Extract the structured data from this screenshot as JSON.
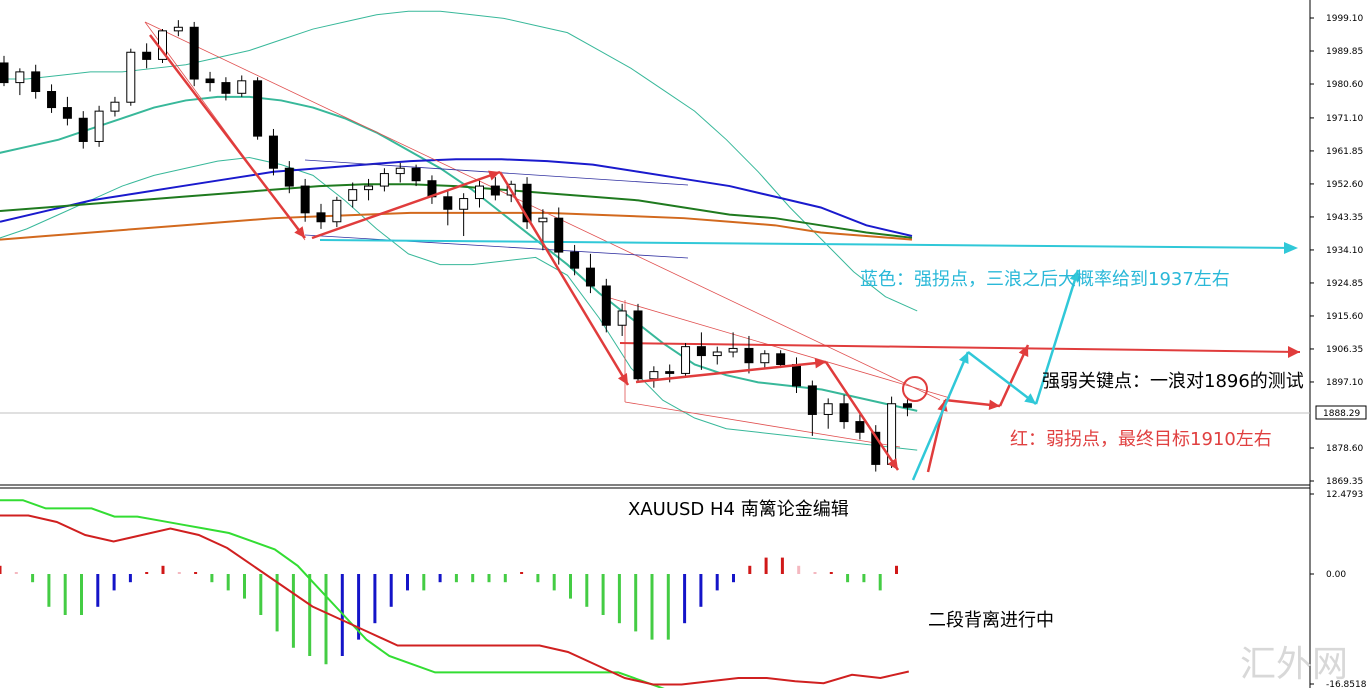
{
  "chart_data": [
    {
      "type": "candlestick",
      "title": "XAUUSD  H4  南篱论金编辑",
      "symbol": "XAUUSD",
      "timeframe": "H4",
      "ylim": [
        1869.35,
        2003
      ],
      "y_ticks": [
        "1999.10",
        "1989.85",
        "1980.60",
        "1971.10",
        "1961.85",
        "1952.60",
        "1943.35",
        "1934.10",
        "1924.85",
        "1915.60",
        "1906.35",
        "1897.10",
        "1878.60",
        "1869.35"
      ],
      "current_price": "1888.29",
      "grid": false,
      "candles": [
        [
          1986.5,
          1988.5,
          1980.0,
          1981.0
        ],
        [
          1981.0,
          1985.0,
          1977.5,
          1984.0
        ],
        [
          1984.0,
          1986.0,
          1976.5,
          1978.5
        ],
        [
          1978.5,
          1980.5,
          1972.5,
          1974.0
        ],
        [
          1974.0,
          1977.0,
          1969.0,
          1971.0
        ],
        [
          1971.0,
          1973.0,
          1962.5,
          1964.5
        ],
        [
          1964.5,
          1974.5,
          1963.0,
          1973.0
        ],
        [
          1973.0,
          1977.0,
          1971.5,
          1975.5
        ],
        [
          1975.5,
          1990.5,
          1974.5,
          1989.5
        ],
        [
          1989.5,
          1992.0,
          1985.0,
          1987.5
        ],
        [
          1987.5,
          1996.0,
          1986.5,
          1995.5
        ],
        [
          1995.5,
          1998.5,
          1994.0,
          1996.5
        ],
        [
          1996.5,
          1998.0,
          1980.0,
          1982.0
        ],
        [
          1982.0,
          1984.0,
          1978.5,
          1981.0
        ],
        [
          1981.0,
          1982.5,
          1976.0,
          1978.0
        ],
        [
          1978.0,
          1983.0,
          1977.0,
          1981.5
        ],
        [
          1981.5,
          1982.5,
          1965.0,
          1966.0
        ],
        [
          1966.0,
          1968.0,
          1955.0,
          1957.0
        ],
        [
          1957.0,
          1959.0,
          1950.0,
          1952.0
        ],
        [
          1952.0,
          1954.0,
          1942.0,
          1944.5
        ],
        [
          1944.5,
          1947.0,
          1940.0,
          1942.0
        ],
        [
          1942.0,
          1949.0,
          1940.5,
          1948.0
        ],
        [
          1948.0,
          1953.0,
          1946.0,
          1951.0
        ],
        [
          1951.0,
          1954.0,
          1948.0,
          1952.0
        ],
        [
          1952.0,
          1957.0,
          1950.5,
          1955.5
        ],
        [
          1955.5,
          1958.5,
          1953.0,
          1957.0
        ],
        [
          1957.0,
          1958.0,
          1952.0,
          1953.5
        ],
        [
          1953.5,
          1955.0,
          1947.0,
          1949.0
        ],
        [
          1949.0,
          1951.0,
          1941.0,
          1945.5
        ],
        [
          1945.5,
          1950.0,
          1938.0,
          1948.5
        ],
        [
          1948.5,
          1953.5,
          1946.0,
          1952.0
        ],
        [
          1952.0,
          1954.5,
          1948.0,
          1949.5
        ],
        [
          1949.5,
          1953.5,
          1947.5,
          1952.5
        ],
        [
          1952.5,
          1954.5,
          1940.0,
          1942.0
        ],
        [
          1942.0,
          1945.5,
          1934.0,
          1943.0
        ],
        [
          1943.0,
          1946.0,
          1930.0,
          1933.5
        ],
        [
          1933.5,
          1935.5,
          1927.0,
          1929.0
        ],
        [
          1929.0,
          1933.0,
          1922.0,
          1924.0
        ],
        [
          1924.0,
          1926.0,
          1911.0,
          1913.0
        ],
        [
          1913.0,
          1919.0,
          1910.0,
          1917.0
        ],
        [
          1917.0,
          1919.0,
          1897.0,
          1898.0
        ],
        [
          1898.0,
          1901.5,
          1895.5,
          1900.0
        ],
        [
          1900.0,
          1902.0,
          1897.0,
          1899.5
        ],
        [
          1899.5,
          1908.0,
          1898.5,
          1907.0
        ],
        [
          1907.0,
          1911.0,
          1900.5,
          1904.5
        ],
        [
          1904.5,
          1907.0,
          1902.0,
          1905.5
        ],
        [
          1905.5,
          1911.0,
          1904.0,
          1906.5
        ],
        [
          1906.5,
          1910.0,
          1899.5,
          1902.5
        ],
        [
          1902.5,
          1906.0,
          1901.0,
          1905.0
        ],
        [
          1905.0,
          1906.0,
          1901.0,
          1902.0
        ],
        [
          1902.0,
          1904.0,
          1894.0,
          1896.0
        ],
        [
          1896.0,
          1897.5,
          1882.0,
          1888.0
        ],
        [
          1888.0,
          1892.5,
          1884.0,
          1891.0
        ],
        [
          1891.0,
          1893.5,
          1884.0,
          1886.0
        ],
        [
          1886.0,
          1888.5,
          1881.0,
          1883.0
        ],
        [
          1883.0,
          1885.0,
          1872.0,
          1874.0
        ],
        [
          1874.0,
          1893.0,
          1873.0,
          1891.0
        ],
        [
          1891.0,
          1892.5,
          1887.5,
          1890.0
        ]
      ],
      "bollinger": {
        "upper": [
          1982,
          1982,
          1983,
          1984,
          1984,
          1985,
          1986,
          1988,
          1990,
          1993,
          1996,
          1998,
          2000,
          2001,
          2001,
          2000,
          1999,
          1997,
          1995,
          1990,
          1985,
          1979,
          1973,
          1965,
          1956,
          1946,
          1937,
          1928,
          1921,
          1917
        ],
        "middle": [
          1961,
          1963,
          1965,
          1968,
          1971,
          1974,
          1976,
          1977,
          1977,
          1976,
          1974,
          1971,
          1967,
          1962,
          1957,
          1951,
          1944,
          1937,
          1930,
          1922,
          1915,
          1908,
          1902,
          1899,
          1897,
          1896,
          1895,
          1893,
          1891,
          1889
        ],
        "lower": [
          1937,
          1940,
          1944,
          1948,
          1952,
          1955,
          1957,
          1959,
          1960,
          1958,
          1955,
          1948,
          1940,
          1933,
          1930,
          1930,
          1931,
          1932,
          1927,
          1915,
          1901,
          1892,
          1887,
          1884,
          1883,
          1882,
          1881,
          1880,
          1879,
          1878
        ]
      },
      "moving_averages": [
        {
          "color": "#1a1acd",
          "values": [
            1942,
            1945,
            1948,
            1950,
            1952,
            1954,
            1956,
            1957,
            1958,
            1959,
            1959.5,
            1959.5,
            1959,
            1958,
            1956,
            1954,
            1952,
            1949,
            1946,
            1941,
            1938
          ]
        },
        {
          "color": "#1f7a1f",
          "values": [
            1945,
            1946,
            1947,
            1948,
            1949,
            1950,
            1951,
            1952,
            1952.5,
            1952.5,
            1952,
            1951,
            1950,
            1949,
            1948,
            1946,
            1944,
            1943,
            1941,
            1939,
            1937.5
          ]
        },
        {
          "color": "#d2691e",
          "values": [
            1937,
            1938,
            1939,
            1940,
            1941,
            1942,
            1943,
            1943.5,
            1944,
            1944.5,
            1944.5,
            1944.5,
            1944.5,
            1944,
            1943.5,
            1943,
            1942,
            1941,
            1939,
            1938,
            1937
          ]
        }
      ],
      "annotations": {
        "blue": "蓝色：强拐点，三浪之后大概率给到1937左右",
        "key": "强弱关键点：一浪对1896的测试",
        "red": "红：弱拐点，最终目标1910左右"
      },
      "levels": {
        "blue_target": 1935,
        "red_target": 1905
      }
    },
    {
      "type": "macd",
      "ylim": [
        -16.8518,
        12.4793
      ],
      "y_ticks": [
        "12.4793",
        "0.00",
        "-16.8518"
      ],
      "histogram": [
        1,
        0,
        -1,
        -4,
        -5,
        -5,
        -4,
        -2,
        -1,
        0,
        1,
        0,
        0,
        -1,
        -2,
        -3,
        -5,
        -7,
        -9,
        -10,
        -11,
        -10,
        -8,
        -6,
        -4,
        -2,
        -2,
        -1,
        -1,
        -1,
        -1,
        -1,
        0,
        -1,
        -2,
        -3,
        -4,
        -5,
        -6,
        -7,
        -8,
        -8,
        -6,
        -4,
        -2,
        -1,
        1,
        2,
        2,
        1,
        0,
        0,
        -1,
        -1,
        -2,
        1
      ],
      "signal_line": [
        9,
        9,
        8,
        8,
        8,
        7,
        7,
        6.5,
        6,
        5.5,
        5,
        4,
        3,
        1,
        -2,
        -5,
        -8,
        -10,
        -11,
        -12,
        -12,
        -12,
        -12,
        -12,
        -12,
        -12,
        -12,
        -12,
        -13,
        -14,
        -15,
        -16,
        -16,
        -16,
        -15.5,
        -15.5,
        -15.5,
        -15.5,
        -15.8,
        -15.5,
        -15
      ],
      "macd_line": [
        9,
        9,
        8,
        6,
        5,
        6,
        7,
        6,
        4,
        1,
        -2,
        -5,
        -7,
        -9,
        -11,
        -11,
        -11,
        -11,
        -11,
        -11,
        -12,
        -14,
        -16,
        -17,
        -17,
        -16.5,
        -16,
        -16,
        -16.5,
        -16.8,
        -15.5,
        -16,
        -15
      ]
    }
  ],
  "texts": {
    "indicator_caption": "二段背离进行中",
    "watermark": "汇外网"
  },
  "colors": {
    "red_arrow": "#e03c3c",
    "cyan_arrow": "#30c8d8",
    "blue_annot": "#2ab8d8",
    "red_annot": "#e04040",
    "bb": "#38b89a",
    "hist_up": "#d01818",
    "hist_up_light": "#f4b8c0",
    "hist_down": "#1414c8",
    "hist_down_light": "#44cc44",
    "macd_red": "#d02020",
    "macd_green": "#33dd33"
  }
}
